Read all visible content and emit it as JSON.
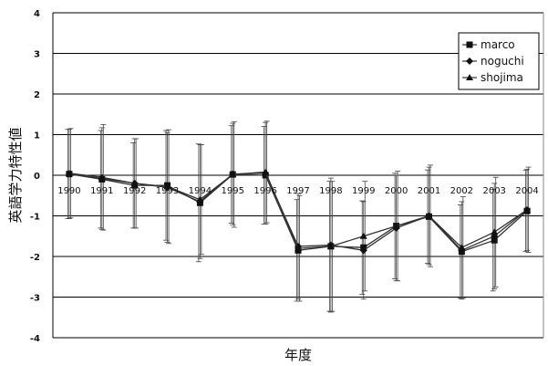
{
  "chart_data": {
    "type": "line",
    "title": "",
    "xlabel": "年度",
    "ylabel": "英語学力特性値",
    "categories": [
      "1990",
      "1991",
      "1992",
      "1993",
      "1994",
      "1995",
      "1996",
      "1997",
      "1998",
      "1999",
      "2000",
      "2001",
      "2002",
      "2003",
      "2004"
    ],
    "ylim": [
      -4,
      4
    ],
    "yticks": [
      4,
      3,
      2,
      1,
      0,
      -1,
      -2,
      -3,
      -4
    ],
    "grid": true,
    "legend_position": "top-right",
    "series": [
      {
        "name": "marco",
        "marker": "square",
        "values": [
          0.03,
          -0.1,
          -0.25,
          -0.25,
          -0.68,
          0.02,
          0.0,
          -1.85,
          -1.75,
          -1.78,
          -1.25,
          -1.02,
          -1.88,
          -1.6,
          -0.88
        ],
        "error": [
          1.1,
          1.2,
          1.05,
          1.35,
          1.45,
          1.2,
          1.2,
          1.25,
          1.6,
          1.15,
          1.3,
          1.15,
          1.15,
          1.25,
          1.0
        ]
      },
      {
        "name": "noguchi",
        "marker": "diamond",
        "values": [
          0.03,
          -0.08,
          -0.2,
          -0.3,
          -0.65,
          0.03,
          0.05,
          -1.75,
          -1.72,
          -1.85,
          -1.3,
          -1.0,
          -1.85,
          -1.5,
          -0.85
        ],
        "error": [
          1.1,
          1.25,
          1.1,
          1.35,
          1.4,
          1.25,
          1.25,
          1.3,
          1.65,
          1.2,
          1.3,
          1.2,
          1.2,
          1.3,
          1.0
        ]
      },
      {
        "name": "shojima",
        "marker": "triangle",
        "values": [
          0.05,
          -0.05,
          -0.2,
          -0.28,
          -0.6,
          0.02,
          0.08,
          -1.8,
          -1.75,
          -1.5,
          -1.25,
          -1.0,
          -1.78,
          -1.4,
          -0.85
        ],
        "error": [
          1.1,
          1.3,
          1.1,
          1.4,
          1.35,
          1.3,
          1.25,
          1.3,
          1.6,
          1.35,
          1.35,
          1.25,
          1.25,
          1.35,
          1.05
        ]
      }
    ],
    "colors": {
      "line": "#333333",
      "grid": "#000000",
      "marker": "#111111"
    }
  }
}
